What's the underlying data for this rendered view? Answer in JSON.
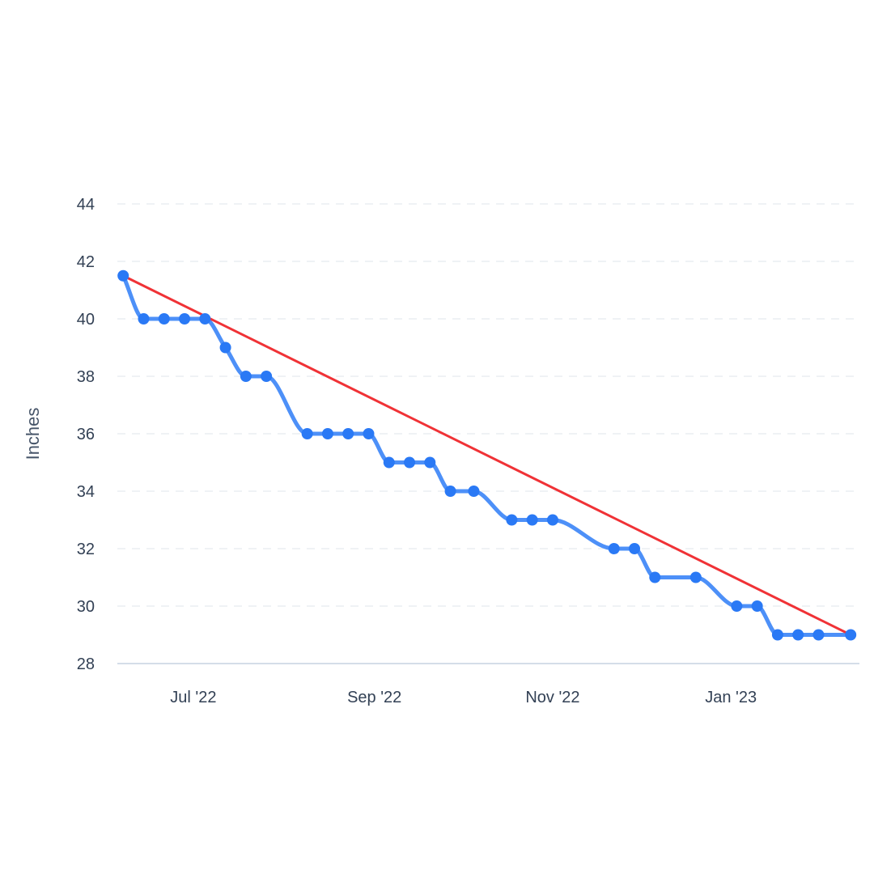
{
  "chart_data": {
    "type": "line",
    "title": "",
    "xlabel": "",
    "ylabel": "Inches",
    "ylim": [
      28,
      44
    ],
    "xlim": [
      "2022-06-05",
      "2023-02-14"
    ],
    "grid": true,
    "legend": "none",
    "y_ticks": [
      "44",
      "42",
      "40",
      "38",
      "36",
      "34",
      "32",
      "30",
      "28"
    ],
    "x_ticks": [
      {
        "date": "2022-07-01",
        "label": "Jul '22"
      },
      {
        "date": "2022-09-01",
        "label": "Sep '22"
      },
      {
        "date": "2022-11-01",
        "label": "Nov '22"
      },
      {
        "date": "2023-01-01",
        "label": "Jan '23"
      }
    ],
    "series": [
      {
        "color": "#4d90f8",
        "marker_color": "#2a79f5",
        "smooth": true,
        "points": [
          {
            "x": "2022-06-07",
            "y": 41.5
          },
          {
            "x": "2022-06-14",
            "y": 40
          },
          {
            "x": "2022-06-21",
            "y": 40
          },
          {
            "x": "2022-06-28",
            "y": 40
          },
          {
            "x": "2022-07-05",
            "y": 40
          },
          {
            "x": "2022-07-12",
            "y": 39
          },
          {
            "x": "2022-07-19",
            "y": 38
          },
          {
            "x": "2022-07-26",
            "y": 38
          },
          {
            "x": "2022-08-09",
            "y": 36
          },
          {
            "x": "2022-08-16",
            "y": 36
          },
          {
            "x": "2022-08-23",
            "y": 36
          },
          {
            "x": "2022-08-30",
            "y": 36
          },
          {
            "x": "2022-09-06",
            "y": 35
          },
          {
            "x": "2022-09-13",
            "y": 35
          },
          {
            "x": "2022-09-20",
            "y": 35
          },
          {
            "x": "2022-09-27",
            "y": 34
          },
          {
            "x": "2022-10-05",
            "y": 34
          },
          {
            "x": "2022-10-18",
            "y": 33
          },
          {
            "x": "2022-10-25",
            "y": 33
          },
          {
            "x": "2022-11-01",
            "y": 33
          },
          {
            "x": "2022-11-22",
            "y": 32
          },
          {
            "x": "2022-11-29",
            "y": 32
          },
          {
            "x": "2022-12-06",
            "y": 31
          },
          {
            "x": "2022-12-20",
            "y": 31
          },
          {
            "x": "2023-01-03",
            "y": 30
          },
          {
            "x": "2023-01-10",
            "y": 30
          },
          {
            "x": "2023-01-17",
            "y": 29
          },
          {
            "x": "2023-01-24",
            "y": 29
          },
          {
            "x": "2023-01-31",
            "y": 29
          },
          {
            "x": "2023-02-11",
            "y": 29
          }
        ]
      }
    ],
    "trend_line": {
      "color": "#f03236",
      "start": {
        "x": "2022-06-07",
        "y": 41.5
      },
      "end": {
        "x": "2023-02-11",
        "y": 29
      }
    }
  }
}
